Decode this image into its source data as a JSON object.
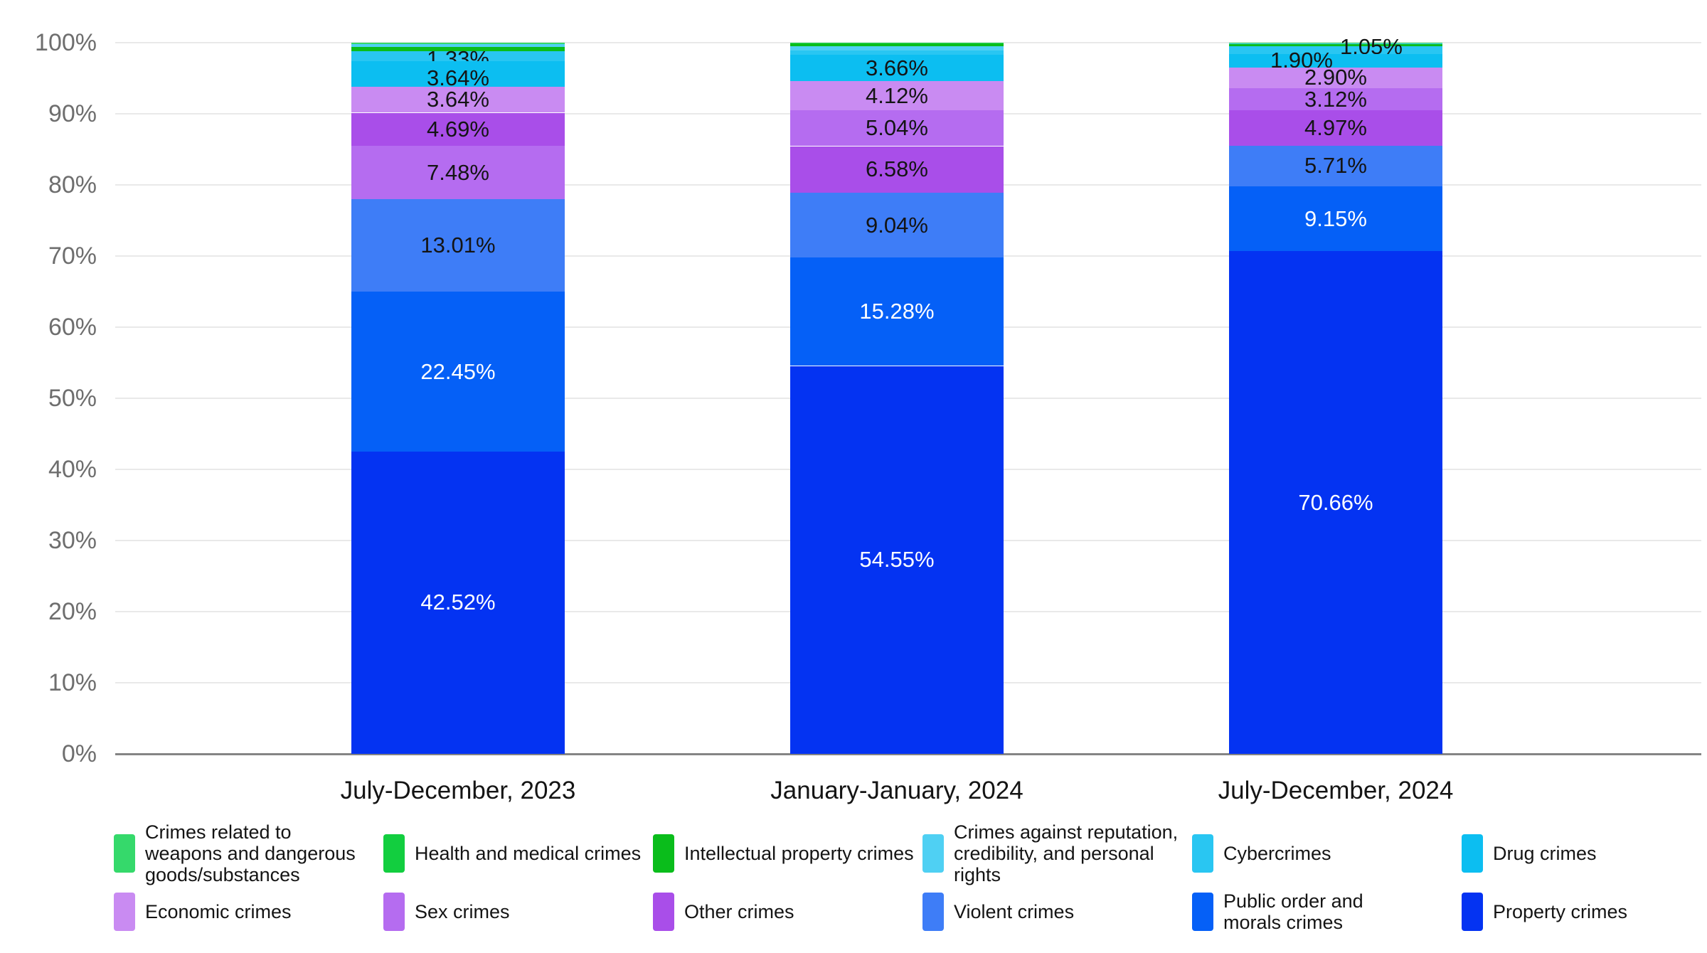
{
  "chart_data": {
    "type": "bar",
    "variant": "stacked-100-percent",
    "title": "",
    "categories": [
      "July-December, 2023",
      "January-January, 2024",
      "July-December, 2024"
    ],
    "y_axis": {
      "min": 0,
      "max": 100,
      "tick_labels": [
        "0%",
        "10%",
        "20%",
        "30%",
        "40%",
        "50%",
        "60%",
        "70%",
        "80%",
        "90%",
        "100%"
      ],
      "grid": true
    },
    "stack_order": "within each bar, segments are sorted smallest-on-top to largest-on-bottom",
    "label_rule": "segment value labels shown only when value >= 1%",
    "unlabeled_segments_estimated": true,
    "series": [
      {
        "id": "weapons",
        "name": "Crimes related to weapons and dangerous goods/substances",
        "color": "#35D96B",
        "values": [
          0.15,
          0.05,
          0.05
        ],
        "estimated": true,
        "wrap_width": 300
      },
      {
        "id": "health",
        "name": "Health and medical crimes",
        "color": "#12CE3F",
        "values": [
          0,
          0,
          0
        ],
        "estimated": true,
        "wrap_width": 380
      },
      {
        "id": "intellectual",
        "name": "Intellectual property crimes",
        "color": "#0ABD1B",
        "values": [
          0.64,
          0.48,
          0.36
        ],
        "estimated": true,
        "wrap_width": 380
      },
      {
        "id": "reputation",
        "name": "Crimes against reputation, credibility, and personal rights",
        "color": "#4FD0F3",
        "values": [
          0.45,
          0.55,
          0.13
        ],
        "estimated": true,
        "wrap_width": 330
      },
      {
        "id": "cyber",
        "name": "Cybercrimes",
        "color": "#29C6F2",
        "values": [
          1.33,
          0.65,
          1.05
        ],
        "wrap_width": 380
      },
      {
        "id": "drug",
        "name": "Drug crimes",
        "color": "#0CBEF1",
        "values": [
          3.64,
          3.66,
          1.9
        ],
        "wrap_width": 380
      },
      {
        "id": "economic",
        "name": "Economic crimes",
        "color": "#C98BF2",
        "values": [
          3.64,
          4.12,
          2.9
        ],
        "wrap_width": 380
      },
      {
        "id": "sex",
        "name": "Sex crimes",
        "color": "#B56CF0",
        "values": [
          7.48,
          5.04,
          3.12
        ],
        "wrap_width": 380
      },
      {
        "id": "other",
        "name": "Other crimes",
        "color": "#A94EE9",
        "values": [
          4.69,
          6.58,
          4.97
        ],
        "wrap_width": 380
      },
      {
        "id": "violent",
        "name": "Violent crimes",
        "color": "#3E7DF7",
        "values": [
          13.01,
          9.04,
          5.71
        ],
        "wrap_width": 380
      },
      {
        "id": "public_order",
        "name": "Public order and morals crimes",
        "color": "#0560F7",
        "values": [
          22.45,
          15.28,
          9.15
        ],
        "label_text_color": "#ffffff",
        "wrap_width": 240
      },
      {
        "id": "property",
        "name": "Property crimes",
        "color": "#0433F2",
        "values": [
          42.52,
          54.55,
          70.66
        ],
        "label_text_color": "#ffffff",
        "wrap_width": 380
      }
    ],
    "shown_value_labels": {
      "July-December, 2023": [
        "1.33%",
        "3.64%",
        "3.64%",
        "4.69%",
        "7.48%",
        "13.01%",
        "22.45%",
        "42.52%"
      ],
      "January-January, 2024": [
        "3.66%",
        "4.12%",
        "5.04%",
        "6.58%",
        "9.04%",
        "15.28%",
        "54.55%"
      ],
      "July-December, 2024": [
        "1.05%",
        "1.90%",
        "2.90%",
        "3.12%",
        "4.97%",
        "5.71%",
        "9.15%",
        "70.66%"
      ]
    },
    "label_offsets": {
      "0": {
        "cyber": [
          0,
          4
        ],
        "drug": [
          0,
          6
        ]
      },
      "2": {
        "cyber": [
          50,
          -5
        ],
        "drug": [
          -48,
          0
        ]
      }
    },
    "legend_rows": [
      [
        "weapons",
        "health",
        "intellectual",
        "reputation",
        "cyber",
        "drug"
      ],
      [
        "economic",
        "sex",
        "other",
        "violent",
        "public_order",
        "property"
      ]
    ],
    "legend_position": "bottom",
    "colors_note": {
      "grid": "#e9e9e9",
      "axis_line": "#848484",
      "tick_text": "#6e6e6e",
      "label_text_dark": "#141414",
      "label_text_light": "#ffffff"
    }
  }
}
